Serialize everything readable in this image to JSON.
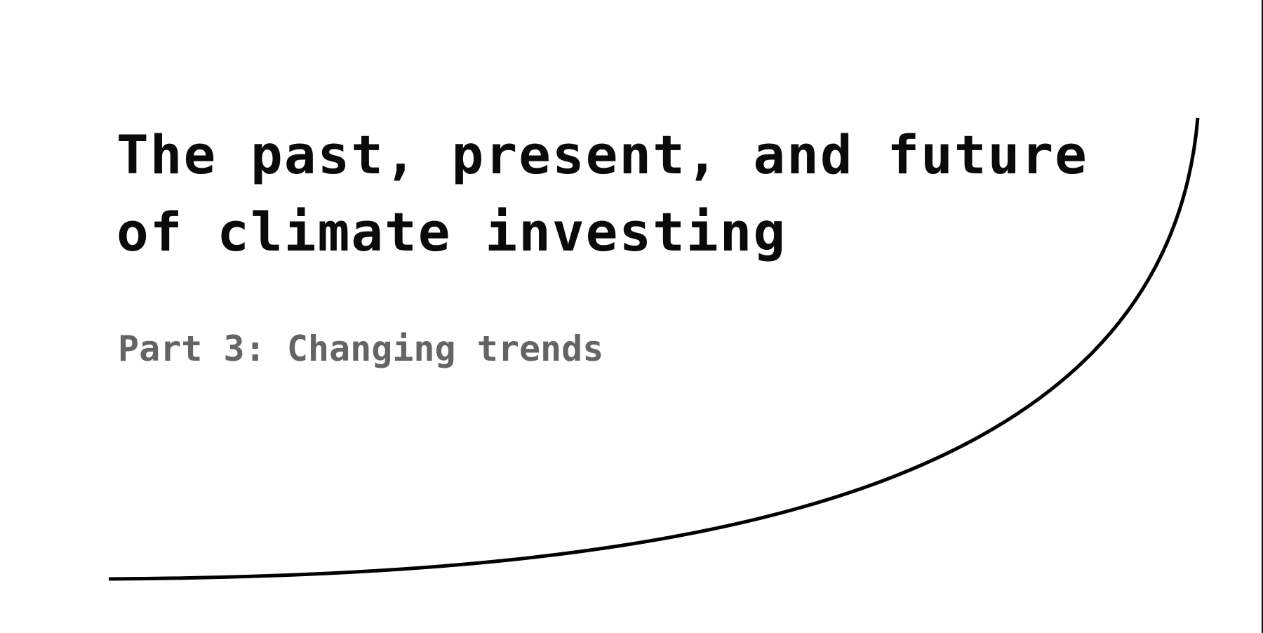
{
  "hero": {
    "title_line_1": "The past, present, and future",
    "title_line_2": "of climate investing",
    "subtitle": "Part 3: Changing trends"
  },
  "colors": {
    "background": "#ffffff",
    "title": "#0a0a0a",
    "subtitle": "#646464",
    "curve": "#000000"
  }
}
